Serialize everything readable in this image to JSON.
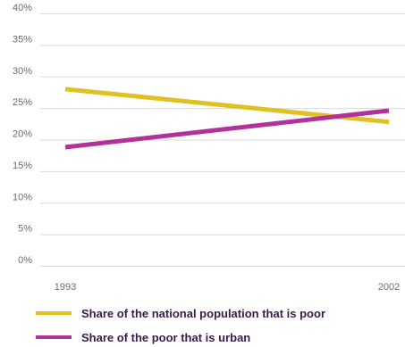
{
  "chart_data": {
    "type": "line",
    "x": [
      "1993",
      "2002"
    ],
    "y_ticks": [
      "0%",
      "5%",
      "10%",
      "15%",
      "20%",
      "25%",
      "30%",
      "35%",
      "40%"
    ],
    "ylim": [
      0,
      40
    ],
    "y_unit": "%",
    "grid": "horizontal",
    "legend_position": "bottom",
    "series": [
      {
        "name": "Share of the national population that is poor",
        "values": [
          28,
          22.8
        ],
        "color": "#e0c022"
      },
      {
        "name": "Share of the poor that is urban",
        "values": [
          18.8,
          24.6
        ],
        "color": "#b3319a"
      }
    ]
  },
  "colors": {
    "grid": "#d9d9d9",
    "axis_text": "#6b6b6b",
    "legend_text": "#3a1a4a"
  }
}
